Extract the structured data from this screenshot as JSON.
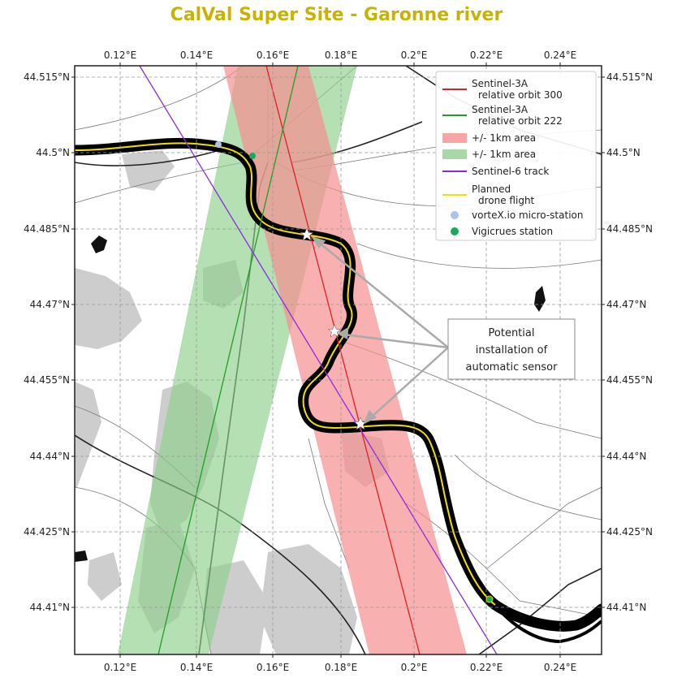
{
  "title": "CalVal Super Site - Garonne river",
  "x_ticks": [
    "0.12°E",
    "0.14°E",
    "0.16°E",
    "0.18°E",
    "0.2°E",
    "0.22°E",
    "0.24°E"
  ],
  "y_ticks": [
    "44.515°N",
    "44.5°N",
    "44.485°N",
    "44.47°N",
    "44.455°N",
    "44.44°N",
    "44.425°N",
    "44.41°N"
  ],
  "legend": [
    {
      "label": "Sentinel-3A",
      "label2": "relative orbit 300",
      "kind": "line",
      "color": "#e02020"
    },
    {
      "label": "Sentinel-3A",
      "label2": "relative orbit 222",
      "kind": "line",
      "color": "#20a020"
    },
    {
      "label": "+/- 1km area",
      "kind": "patch",
      "color": "#f7a5a5"
    },
    {
      "label": "+/- 1km area",
      "kind": "patch",
      "color": "#a8d8a8"
    },
    {
      "label": "Sentinel-6 track",
      "kind": "line",
      "color": "#8a2be2"
    },
    {
      "label": "Planned",
      "label2": "drone flight",
      "kind": "line",
      "color": "#f0e000"
    },
    {
      "label": "vorteX.io micro-station",
      "kind": "dot",
      "color": "#a9c4e6"
    },
    {
      "label": "Vigicrues station",
      "kind": "dot",
      "color": "#1aa85a"
    }
  ],
  "callout": {
    "lines": [
      "Potential",
      "installation of",
      "automatic sensor"
    ]
  },
  "colors": {
    "title": "#c8b400",
    "river": "#000000",
    "drone": "#f0e000",
    "red_track": "#e02020",
    "green_track": "#20a020",
    "purple_track": "#8a2be2"
  }
}
